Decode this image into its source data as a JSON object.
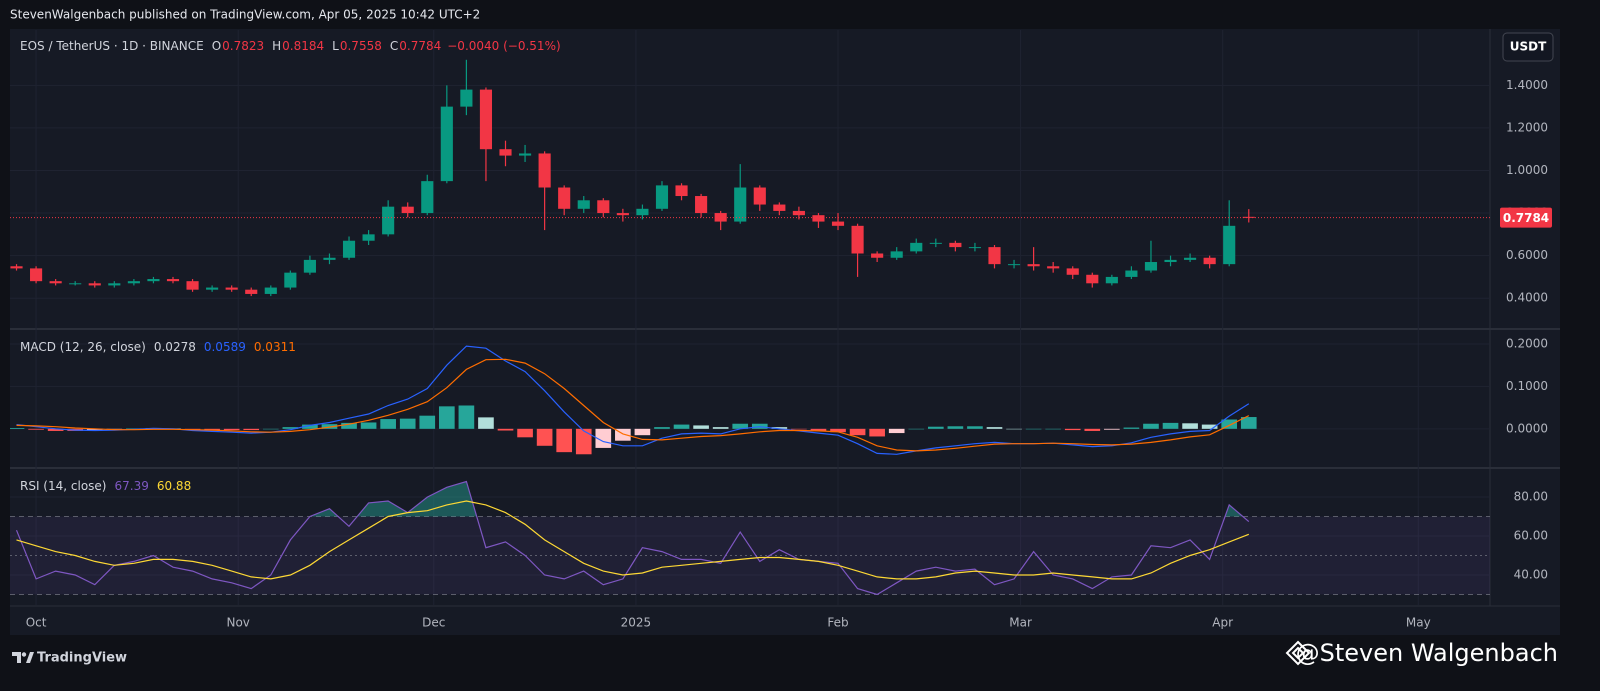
{
  "header": {
    "title": "StevenWalgenbach published on TradingView.com, Apr 05, 2025 10:42 UTC+2"
  },
  "footer": {
    "brand": "TradingView",
    "credit": "@Steven Walgenbach"
  },
  "chart_data": [
    {
      "type": "candlestick",
      "title": "EOS / TetherUS · 1D · BINANCE",
      "currency": "USDT",
      "ohlc_labels": [
        "O",
        "H",
        "L",
        "C"
      ],
      "change_label": "−0.0040 (−0.51%)",
      "up_color": "#089981",
      "down_color": "#f23645",
      "grid": true,
      "xlim": [
        -4,
        223
      ],
      "xticks": [
        {
          "value": 0,
          "label": "Oct"
        },
        {
          "value": 31,
          "label": "Nov"
        },
        {
          "value": 61,
          "label": "Dec"
        },
        {
          "value": 92,
          "label": "2025"
        },
        {
          "value": 123,
          "label": "Feb"
        },
        {
          "value": 151,
          "label": "Mar"
        },
        {
          "value": 182,
          "label": "Apr"
        },
        {
          "value": 212,
          "label": "May"
        }
      ],
      "ylim": [
        0.26,
        1.66
      ],
      "yticks": [
        {
          "value": 0.4,
          "label": "0.4000"
        },
        {
          "value": 0.6,
          "label": "0.6000"
        },
        {
          "value": 0.8,
          "label": "0.8000"
        },
        {
          "value": 1.0,
          "label": "1.0000"
        },
        {
          "value": 1.2,
          "label": "1.2000"
        },
        {
          "value": 1.4,
          "label": "1.4000"
        }
      ],
      "x": [
        -3,
        0,
        3,
        6,
        9,
        12,
        15,
        18,
        21,
        24,
        27,
        30,
        33,
        36,
        39,
        42,
        45,
        48,
        51,
        54,
        57,
        60,
        63,
        66,
        69,
        72,
        75,
        78,
        81,
        84,
        87,
        90,
        93,
        96,
        99,
        102,
        105,
        108,
        111,
        114,
        117,
        120,
        123,
        126,
        129,
        132,
        135,
        138,
        141,
        144,
        147,
        150,
        153,
        156,
        159,
        162,
        165,
        168,
        171,
        174,
        177,
        180,
        183,
        186
      ],
      "open": [
        0.55,
        0.54,
        0.48,
        0.47,
        0.47,
        0.46,
        0.47,
        0.48,
        0.49,
        0.48,
        0.44,
        0.45,
        0.44,
        0.42,
        0.45,
        0.52,
        0.58,
        0.59,
        0.67,
        0.7,
        0.83,
        0.8,
        0.95,
        1.3,
        1.38,
        1.1,
        1.07,
        1.08,
        0.92,
        0.82,
        0.86,
        0.8,
        0.79,
        0.82,
        0.93,
        0.88,
        0.8,
        0.76,
        0.92,
        0.84,
        0.81,
        0.79,
        0.76,
        0.74,
        0.61,
        0.59,
        0.62,
        0.66,
        0.66,
        0.64,
        0.64,
        0.56,
        0.56,
        0.55,
        0.54,
        0.51,
        0.47,
        0.5,
        0.53,
        0.57,
        0.58,
        0.59,
        0.56,
        0.7823
      ],
      "high": [
        0.56,
        0.55,
        0.49,
        0.48,
        0.48,
        0.48,
        0.49,
        0.5,
        0.5,
        0.49,
        0.46,
        0.46,
        0.45,
        0.46,
        0.53,
        0.6,
        0.61,
        0.69,
        0.72,
        0.86,
        0.85,
        0.98,
        1.4,
        1.52,
        1.39,
        1.14,
        1.12,
        1.09,
        0.93,
        0.88,
        0.87,
        0.82,
        0.84,
        0.95,
        0.94,
        0.89,
        0.81,
        1.03,
        0.93,
        0.85,
        0.83,
        0.8,
        0.8,
        0.75,
        0.62,
        0.64,
        0.68,
        0.68,
        0.67,
        0.66,
        0.65,
        0.58,
        0.64,
        0.57,
        0.55,
        0.52,
        0.51,
        0.55,
        0.67,
        0.6,
        0.61,
        0.6,
        0.86,
        0.8184
      ],
      "low": [
        0.53,
        0.47,
        0.46,
        0.46,
        0.45,
        0.45,
        0.46,
        0.47,
        0.47,
        0.43,
        0.43,
        0.43,
        0.41,
        0.41,
        0.44,
        0.51,
        0.56,
        0.58,
        0.65,
        0.69,
        0.78,
        0.79,
        0.94,
        1.26,
        0.95,
        1.02,
        1.04,
        0.72,
        0.79,
        0.8,
        0.78,
        0.76,
        0.77,
        0.81,
        0.86,
        0.78,
        0.72,
        0.75,
        0.81,
        0.79,
        0.77,
        0.73,
        0.72,
        0.5,
        0.57,
        0.58,
        0.61,
        0.64,
        0.62,
        0.62,
        0.54,
        0.54,
        0.53,
        0.52,
        0.49,
        0.45,
        0.46,
        0.49,
        0.52,
        0.55,
        0.57,
        0.54,
        0.55,
        0.7558
      ],
      "close": [
        0.54,
        0.48,
        0.47,
        0.47,
        0.46,
        0.47,
        0.48,
        0.49,
        0.48,
        0.44,
        0.45,
        0.44,
        0.42,
        0.45,
        0.52,
        0.58,
        0.59,
        0.67,
        0.7,
        0.83,
        0.8,
        0.95,
        1.3,
        1.38,
        1.1,
        1.07,
        1.08,
        0.92,
        0.82,
        0.86,
        0.8,
        0.79,
        0.82,
        0.93,
        0.88,
        0.8,
        0.76,
        0.92,
        0.84,
        0.81,
        0.79,
        0.76,
        0.74,
        0.61,
        0.59,
        0.62,
        0.66,
        0.66,
        0.64,
        0.64,
        0.56,
        0.56,
        0.55,
        0.54,
        0.51,
        0.47,
        0.5,
        0.53,
        0.57,
        0.58,
        0.59,
        0.56,
        0.74,
        0.7784
      ]
    },
    {
      "type": "macd",
      "title": "MACD (12, 26, close)",
      "grid": true,
      "ylim": [
        -0.09,
        0.233
      ],
      "yticks": [
        {
          "value": 0,
          "label": "0.0000"
        },
        {
          "value": 0.1,
          "label": "0.1000"
        },
        {
          "value": 0.2,
          "label": "0.2000"
        }
      ],
      "histogram": {
        "colors": [
          "#26a69a",
          "#b2dfdb",
          "#ff5252",
          "#ffcdd2"
        ],
        "values": [
          0.002,
          -0.002,
          -0.005,
          -0.005,
          -0.004,
          -0.001,
          0.001,
          0.002,
          0.001,
          -0.002,
          -0.003,
          -0.003,
          -0.003,
          0,
          0.004,
          0.01,
          0.011,
          0.014,
          0.015,
          0.023,
          0.024,
          0.031,
          0.053,
          0.055,
          0.027,
          -0.004,
          -0.02,
          -0.04,
          -0.055,
          -0.06,
          -0.045,
          -0.028,
          -0.015,
          0.004,
          0.01,
          0.008,
          0.004,
          0.012,
          0.012,
          0.004,
          -0.001,
          -0.005,
          -0.008,
          -0.015,
          -0.018,
          -0.01,
          0,
          0.005,
          0.006,
          0.006,
          0.004,
          0,
          0,
          0,
          -0.003,
          -0.005,
          -0.002,
          0.003,
          0.012,
          0.014,
          0.013,
          0.01,
          0.022,
          0.0278
        ]
      },
      "series": [
        {
          "color": "#2962ff",
          "values": [
            0.01,
            0.005,
            0,
            -0.003,
            -0.004,
            -0.003,
            -0.001,
            0.001,
            0,
            -0.004,
            -0.006,
            -0.008,
            -0.01,
            -0.008,
            -0.002,
            0.008,
            0.015,
            0.025,
            0.035,
            0.055,
            0.07,
            0.095,
            0.15,
            0.195,
            0.19,
            0.16,
            0.135,
            0.09,
            0.04,
            -0.005,
            -0.03,
            -0.04,
            -0.04,
            -0.022,
            -0.012,
            -0.01,
            -0.012,
            0,
            0.005,
            0,
            -0.005,
            -0.01,
            -0.015,
            -0.035,
            -0.058,
            -0.06,
            -0.052,
            -0.045,
            -0.04,
            -0.035,
            -0.032,
            -0.035,
            -0.035,
            -0.034,
            -0.038,
            -0.042,
            -0.04,
            -0.033,
            -0.02,
            -0.012,
            -0.006,
            -0.004,
            0.03,
            0.0589
          ]
        },
        {
          "color": "#ff6d00",
          "values": [
            0.008,
            0.007,
            0.005,
            0.002,
            0,
            -0.002,
            -0.002,
            -0.001,
            -0.001,
            -0.002,
            -0.003,
            -0.005,
            -0.007,
            -0.008,
            -0.006,
            -0.002,
            0.004,
            0.011,
            0.02,
            0.032,
            0.046,
            0.064,
            0.097,
            0.14,
            0.163,
            0.164,
            0.155,
            0.13,
            0.095,
            0.055,
            0.015,
            -0.012,
            -0.025,
            -0.026,
            -0.022,
            -0.018,
            -0.016,
            -0.012,
            -0.007,
            -0.004,
            -0.004,
            -0.005,
            -0.007,
            -0.02,
            -0.04,
            -0.05,
            -0.052,
            -0.05,
            -0.046,
            -0.041,
            -0.036,
            -0.035,
            -0.035,
            -0.034,
            -0.035,
            -0.037,
            -0.038,
            -0.036,
            -0.032,
            -0.026,
            -0.019,
            -0.014,
            0.008,
            0.0311
          ]
        }
      ]
    },
    {
      "type": "rsi",
      "title": "RSI (14, close)",
      "grid": true,
      "ylim": [
        24.6,
        94.4
      ],
      "yticks": [
        {
          "value": 40,
          "label": "40.00"
        },
        {
          "value": 60,
          "label": "60.00"
        },
        {
          "value": 80,
          "label": "80.00"
        }
      ],
      "levels": [
        70,
        50,
        30
      ],
      "band_color": "#7e57c2",
      "overbought_color": "#26a69a",
      "series": [
        {
          "color": "#7e57c2",
          "values": [
            63,
            38,
            42,
            40,
            35,
            45,
            47,
            50,
            44,
            42,
            38,
            36,
            33,
            40,
            58,
            70,
            74,
            65,
            77,
            78,
            72,
            80,
            85,
            88,
            54,
            57,
            50,
            40,
            38,
            42,
            35,
            38,
            54,
            52,
            48,
            48,
            46,
            62,
            47,
            53,
            48,
            47,
            46,
            33,
            30,
            36,
            42,
            44,
            42,
            43,
            35,
            38,
            52,
            40,
            38,
            33,
            39,
            40,
            55,
            54,
            58,
            48,
            76,
            67.39
          ]
        },
        {
          "color": "#fdd835",
          "values": [
            58,
            55,
            52,
            50,
            47,
            45,
            46,
            48,
            48,
            47,
            45,
            42,
            39,
            38,
            40,
            45,
            52,
            58,
            64,
            70,
            72,
            73,
            76,
            78,
            76,
            72,
            66,
            58,
            52,
            46,
            42,
            40,
            41,
            44,
            45,
            46,
            47,
            48,
            49,
            49,
            48,
            47,
            45,
            42,
            39,
            38,
            38,
            39,
            41,
            42,
            41,
            40,
            40,
            41,
            40,
            39,
            38,
            38,
            41,
            46,
            50,
            53,
            57,
            60.88
          ]
        }
      ]
    }
  ]
}
